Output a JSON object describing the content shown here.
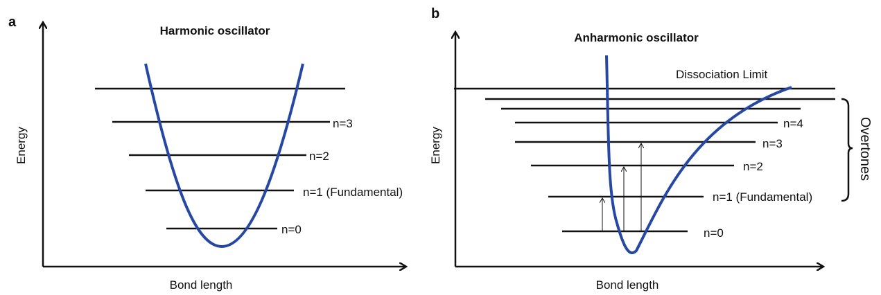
{
  "panels": [
    {
      "letter": "a",
      "title": "Harmonic oscillator",
      "y_label": "Energy",
      "x_label": "Bond length",
      "levels": [
        "n=3",
        "n=2",
        "n=1 (Fundamental)",
        "n=0"
      ]
    },
    {
      "letter": "b",
      "title": "Anharmonic oscillator",
      "y_label": "Energy",
      "x_label": "Bond length",
      "limit_label": "Dissociation Limit",
      "bracket_label": "Overtones",
      "levels": [
        "n=4",
        "n=3",
        "n=2",
        "n=1 (Fundamental)",
        "n=0"
      ]
    }
  ]
}
